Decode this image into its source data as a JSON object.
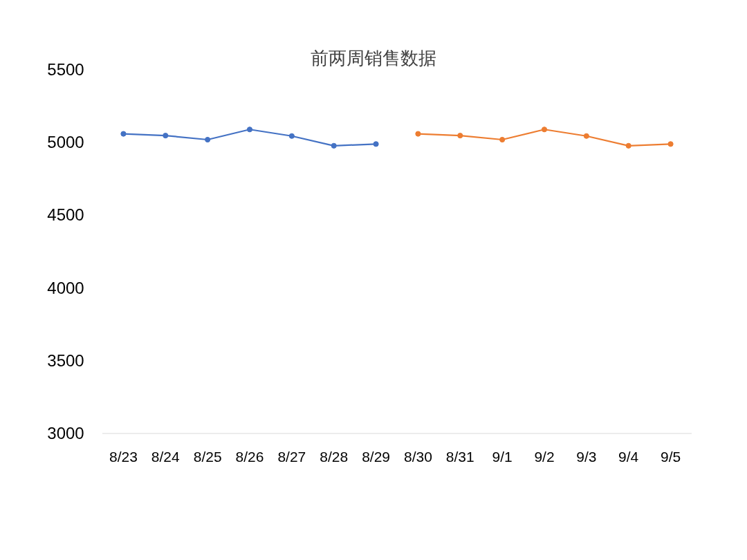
{
  "chart_data": {
    "type": "line",
    "title": "前两周销售数据",
    "categories": [
      "8/23",
      "8/24",
      "8/25",
      "8/26",
      "8/27",
      "8/28",
      "8/29",
      "8/30",
      "8/31",
      "9/1",
      "9/2",
      "9/3",
      "9/4",
      "9/5"
    ],
    "series": [
      {
        "color": "#4472c4",
        "values": [
          5060,
          5048,
          5020,
          5090,
          5045,
          4978,
          4990,
          null,
          null,
          null,
          null,
          null,
          null,
          null
        ]
      },
      {
        "color": "#ed7d31",
        "values": [
          null,
          null,
          null,
          null,
          null,
          null,
          null,
          5060,
          5048,
          5020,
          5090,
          5045,
          4978,
          4990
        ]
      }
    ],
    "ylim": [
      3000,
      5500
    ],
    "yticks": [
      3000,
      3500,
      4000,
      4500,
      5000,
      5500
    ],
    "grid": false,
    "marker": "circle",
    "line_style": "solid"
  }
}
